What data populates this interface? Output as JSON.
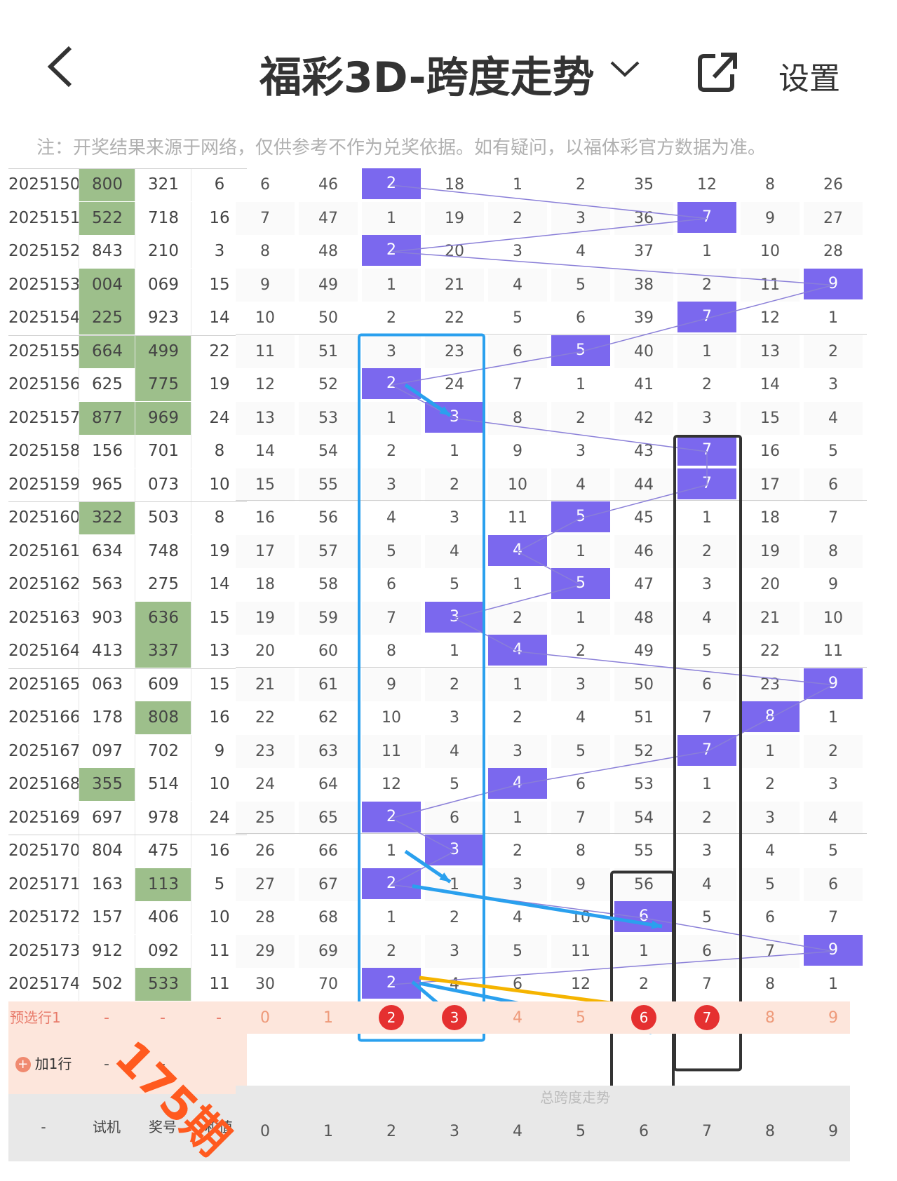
{
  "header": {
    "back_icon": "chevron-left-icon",
    "title": "福彩3D-跨度走势",
    "dropdown_icon": "chevron-down-icon",
    "share_icon": "share-icon",
    "settings_label": "设置"
  },
  "note": "注：开奖结果来源于网络，仅供参考不作为兑奖依据。如有疑问，以福体彩官方数据为准。",
  "colors": {
    "highlight": "#7b68ee",
    "green": "#9dbf8b",
    "pre_row": "#fde6dc",
    "red_circle": "#e53030",
    "blue_box": "#2aa0ee",
    "black_box": "#333333",
    "stamp": "#ff5a1f"
  },
  "rows": [
    {
      "period": "2025150",
      "trial": "800",
      "draw": "321",
      "sum": "6",
      "trial_green": true,
      "draw_green": false,
      "vals": [
        "6",
        "46",
        "2",
        "18",
        "1",
        "2",
        "35",
        "12",
        "8",
        "26"
      ],
      "hl": 2
    },
    {
      "period": "2025151",
      "trial": "522",
      "draw": "718",
      "sum": "16",
      "trial_green": true,
      "draw_green": false,
      "vals": [
        "7",
        "47",
        "1",
        "19",
        "2",
        "3",
        "36",
        "7",
        "9",
        "27"
      ],
      "hl": 7
    },
    {
      "period": "2025152",
      "trial": "843",
      "draw": "210",
      "sum": "3",
      "trial_green": false,
      "draw_green": false,
      "vals": [
        "8",
        "48",
        "2",
        "20",
        "3",
        "4",
        "37",
        "1",
        "10",
        "28"
      ],
      "hl": 2
    },
    {
      "period": "2025153",
      "trial": "004",
      "draw": "069",
      "sum": "15",
      "trial_green": true,
      "draw_green": false,
      "vals": [
        "9",
        "49",
        "1",
        "21",
        "4",
        "5",
        "38",
        "2",
        "11",
        "9"
      ],
      "hl": 9
    },
    {
      "period": "2025154",
      "trial": "225",
      "draw": "923",
      "sum": "14",
      "trial_green": true,
      "draw_green": false,
      "vals": [
        "10",
        "50",
        "2",
        "22",
        "5",
        "6",
        "39",
        "7",
        "12",
        "1"
      ],
      "hl": 7
    },
    {
      "period": "2025155",
      "trial": "664",
      "draw": "499",
      "sum": "22",
      "trial_green": true,
      "draw_green": true,
      "vals": [
        "11",
        "51",
        "3",
        "23",
        "6",
        "5",
        "40",
        "1",
        "13",
        "2"
      ],
      "hl": 5
    },
    {
      "period": "2025156",
      "trial": "625",
      "draw": "775",
      "sum": "19",
      "trial_green": false,
      "draw_green": true,
      "vals": [
        "12",
        "52",
        "2",
        "24",
        "7",
        "1",
        "41",
        "2",
        "14",
        "3"
      ],
      "hl": 2
    },
    {
      "period": "2025157",
      "trial": "877",
      "draw": "969",
      "sum": "24",
      "trial_green": true,
      "draw_green": true,
      "vals": [
        "13",
        "53",
        "1",
        "3",
        "8",
        "2",
        "42",
        "3",
        "15",
        "4"
      ],
      "hl": 3
    },
    {
      "period": "2025158",
      "trial": "156",
      "draw": "701",
      "sum": "8",
      "trial_green": false,
      "draw_green": false,
      "vals": [
        "14",
        "54",
        "2",
        "1",
        "9",
        "3",
        "43",
        "7",
        "16",
        "5"
      ],
      "hl": 7
    },
    {
      "period": "2025159",
      "trial": "965",
      "draw": "073",
      "sum": "10",
      "trial_green": false,
      "draw_green": false,
      "vals": [
        "15",
        "55",
        "3",
        "2",
        "10",
        "4",
        "44",
        "7",
        "17",
        "6"
      ],
      "hl": 7
    },
    {
      "period": "2025160",
      "trial": "322",
      "draw": "503",
      "sum": "8",
      "trial_green": true,
      "draw_green": false,
      "vals": [
        "16",
        "56",
        "4",
        "3",
        "11",
        "5",
        "45",
        "1",
        "18",
        "7"
      ],
      "hl": 5
    },
    {
      "period": "2025161",
      "trial": "634",
      "draw": "748",
      "sum": "19",
      "trial_green": false,
      "draw_green": false,
      "vals": [
        "17",
        "57",
        "5",
        "4",
        "4",
        "1",
        "46",
        "2",
        "19",
        "8"
      ],
      "hl": 4
    },
    {
      "period": "2025162",
      "trial": "563",
      "draw": "275",
      "sum": "14",
      "trial_green": false,
      "draw_green": false,
      "vals": [
        "18",
        "58",
        "6",
        "5",
        "1",
        "5",
        "47",
        "3",
        "20",
        "9"
      ],
      "hl": 5
    },
    {
      "period": "2025163",
      "trial": "903",
      "draw": "636",
      "sum": "15",
      "trial_green": false,
      "draw_green": true,
      "vals": [
        "19",
        "59",
        "7",
        "3",
        "2",
        "1",
        "48",
        "4",
        "21",
        "10"
      ],
      "hl": 3
    },
    {
      "period": "2025164",
      "trial": "413",
      "draw": "337",
      "sum": "13",
      "trial_green": false,
      "draw_green": true,
      "vals": [
        "20",
        "60",
        "8",
        "1",
        "4",
        "2",
        "49",
        "5",
        "22",
        "11"
      ],
      "hl": 4
    },
    {
      "period": "2025165",
      "trial": "063",
      "draw": "609",
      "sum": "15",
      "trial_green": false,
      "draw_green": false,
      "vals": [
        "21",
        "61",
        "9",
        "2",
        "1",
        "3",
        "50",
        "6",
        "23",
        "9"
      ],
      "hl": 9
    },
    {
      "period": "2025166",
      "trial": "178",
      "draw": "808",
      "sum": "16",
      "trial_green": false,
      "draw_green": true,
      "vals": [
        "22",
        "62",
        "10",
        "3",
        "2",
        "4",
        "51",
        "7",
        "8",
        "1"
      ],
      "hl": 8
    },
    {
      "period": "2025167",
      "trial": "097",
      "draw": "702",
      "sum": "9",
      "trial_green": false,
      "draw_green": false,
      "vals": [
        "23",
        "63",
        "11",
        "4",
        "3",
        "5",
        "52",
        "7",
        "1",
        "2"
      ],
      "hl": 7
    },
    {
      "period": "2025168",
      "trial": "355",
      "draw": "514",
      "sum": "10",
      "trial_green": true,
      "draw_green": false,
      "vals": [
        "24",
        "64",
        "12",
        "5",
        "4",
        "6",
        "53",
        "1",
        "2",
        "3"
      ],
      "hl": 4
    },
    {
      "period": "2025169",
      "trial": "697",
      "draw": "978",
      "sum": "24",
      "trial_green": false,
      "draw_green": false,
      "vals": [
        "25",
        "65",
        "2",
        "6",
        "1",
        "7",
        "54",
        "2",
        "3",
        "4"
      ],
      "hl": 2
    },
    {
      "period": "2025170",
      "trial": "804",
      "draw": "475",
      "sum": "16",
      "trial_green": false,
      "draw_green": false,
      "vals": [
        "26",
        "66",
        "1",
        "3",
        "2",
        "8",
        "55",
        "3",
        "4",
        "5"
      ],
      "hl": 3
    },
    {
      "period": "2025171",
      "trial": "163",
      "draw": "113",
      "sum": "5",
      "trial_green": false,
      "draw_green": true,
      "vals": [
        "27",
        "67",
        "2",
        "1",
        "3",
        "9",
        "56",
        "4",
        "5",
        "6"
      ],
      "hl": 2
    },
    {
      "period": "2025172",
      "trial": "157",
      "draw": "406",
      "sum": "10",
      "trial_green": false,
      "draw_green": false,
      "vals": [
        "28",
        "68",
        "1",
        "2",
        "4",
        "10",
        "6",
        "5",
        "6",
        "7"
      ],
      "hl": 6
    },
    {
      "period": "2025173",
      "trial": "912",
      "draw": "092",
      "sum": "11",
      "trial_green": false,
      "draw_green": false,
      "vals": [
        "29",
        "69",
        "2",
        "3",
        "5",
        "11",
        "1",
        "6",
        "7",
        "9"
      ],
      "hl": 9
    },
    {
      "period": "2025174",
      "trial": "502",
      "draw": "533",
      "sum": "11",
      "trial_green": false,
      "draw_green": true,
      "vals": [
        "30",
        "70",
        "2",
        "4",
        "6",
        "12",
        "2",
        "7",
        "8",
        "1"
      ],
      "hl": 2
    }
  ],
  "preselect": {
    "label": "预选行1",
    "dashes": [
      "-",
      "-",
      "-"
    ],
    "vals": [
      "0",
      "1",
      "2",
      "3",
      "4",
      "5",
      "6",
      "7",
      "8",
      "9"
    ],
    "circled": [
      2,
      3,
      6,
      7
    ]
  },
  "add_row": {
    "label": "加1行",
    "icon": "plus-circle-icon",
    "dash1": "-",
    "dash2": "-"
  },
  "footer": {
    "dash": "-",
    "trial": "试机",
    "draw": "奖号",
    "sum": "和值",
    "trend_title": "总跨度走势",
    "digits": [
      "0",
      "1",
      "2",
      "3",
      "4",
      "5",
      "6",
      "7",
      "8",
      "9"
    ]
  },
  "stamp": "175期"
}
